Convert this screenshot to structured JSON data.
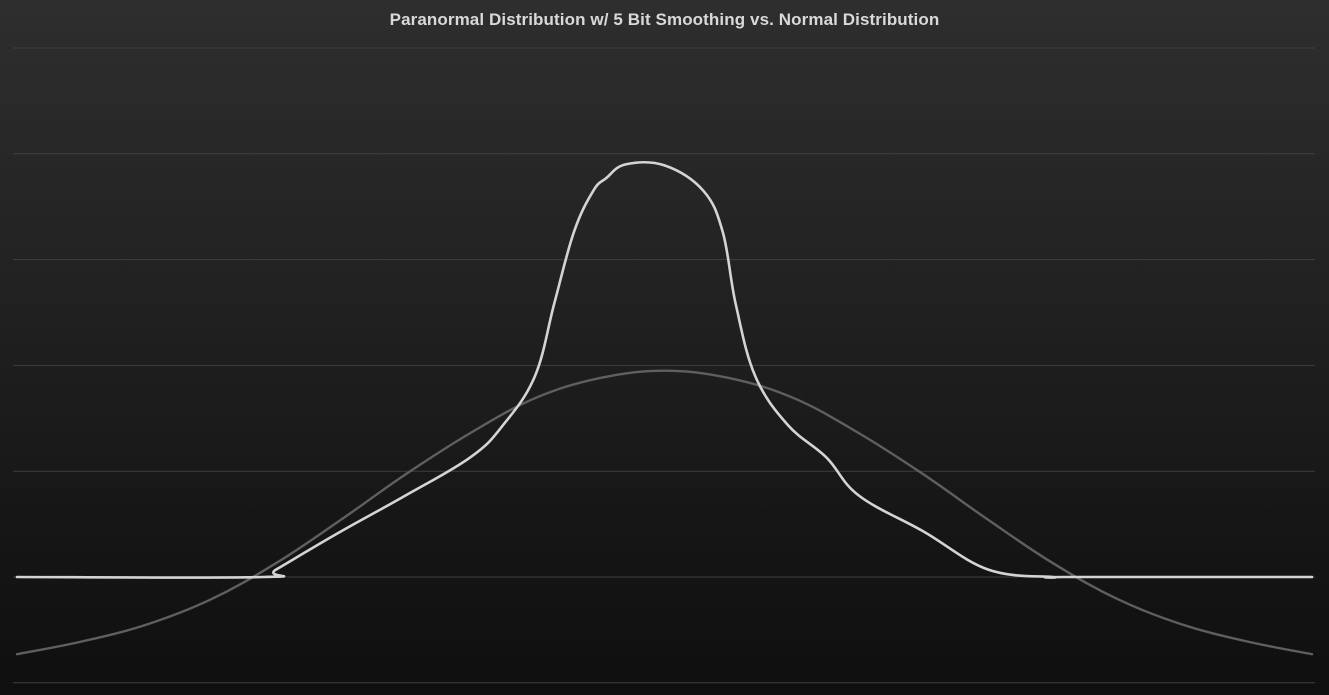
{
  "chart_data": {
    "type": "line",
    "title": "Paranormal Distribution w/ 5 Bit Smoothing vs. Normal Distribution",
    "xlabel": "",
    "ylabel": "",
    "x_range": [
      -5,
      5
    ],
    "ylim": [
      -0.1,
      0.5
    ],
    "grid": "horizontal",
    "legend": "none",
    "series": [
      {
        "color": "#5f5f5f",
        "x": [
          -5.0,
          -4.5,
          -4.0,
          -3.5,
          -3.0,
          -2.5,
          -2.0,
          -1.5,
          -1.0,
          -0.5,
          0.0,
          0.5,
          1.0,
          1.5,
          2.0,
          2.5,
          3.0,
          3.5,
          4.0,
          4.5,
          5.0
        ],
        "y": [
          -0.073,
          -0.061,
          -0.045,
          -0.021,
          0.013,
          0.054,
          0.097,
          0.136,
          0.169,
          0.188,
          0.195,
          0.188,
          0.169,
          0.136,
          0.097,
          0.054,
          0.013,
          -0.021,
          -0.045,
          -0.061,
          -0.073
        ]
      },
      {
        "color": "#d4d4d4",
        "x": [
          -5.0,
          -3.1,
          -3.0,
          -2.5,
          -2.0,
          -1.5,
          -1.25,
          -1.0,
          -0.85,
          -0.7,
          -0.55,
          -0.45,
          -0.3,
          0.0,
          0.3,
          0.45,
          0.55,
          0.7,
          0.95,
          1.25,
          1.5,
          2.0,
          2.5,
          3.0,
          3.1,
          5.0
        ],
        "y": [
          0.0,
          0.0,
          0.007,
          0.043,
          0.077,
          0.113,
          0.143,
          0.19,
          0.259,
          0.326,
          0.365,
          0.377,
          0.39,
          0.389,
          0.365,
          0.326,
          0.258,
          0.19,
          0.144,
          0.113,
          0.077,
          0.043,
          0.007,
          0.0,
          0.0,
          0.0
        ]
      }
    ]
  }
}
